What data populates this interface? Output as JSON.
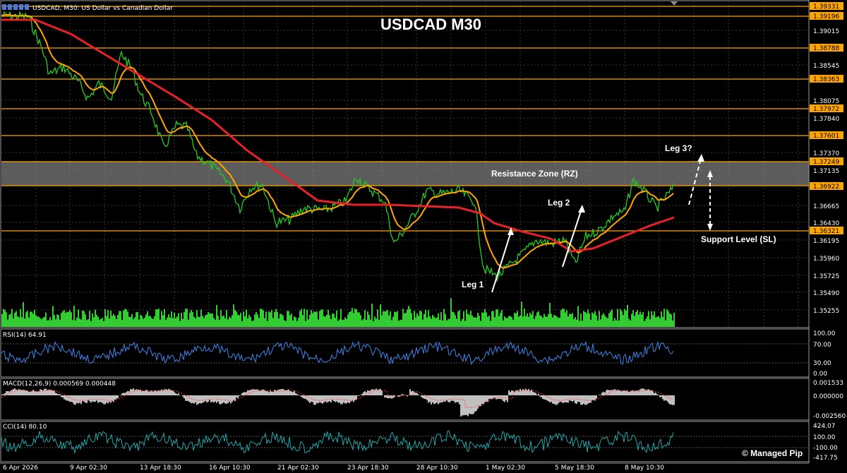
{
  "header": {
    "symbol_info": "USDCAD, M30:  US Dollar vs Canadian Dollar",
    "title": "USDCAD M30"
  },
  "price_axis": {
    "plain_ticks": [
      "1.39015",
      "1.38545",
      "1.38075",
      "1.37840",
      "1.37370",
      "1.37135",
      "1.36665",
      "1.36430",
      "1.36195",
      "1.35960",
      "1.35725",
      "1.35490",
      "1.35255"
    ],
    "level_boxes": [
      "1.39331",
      "1.39196",
      "1.38788",
      "1.38363",
      "1.37972",
      "1.37601",
      "1.37249",
      "1.36922",
      "1.36321"
    ],
    "level_color": "#FFA500"
  },
  "annotations": {
    "resistance_zone": "Resistance Zone (RZ)",
    "support_level": "Support Level (SL)",
    "leg1": "Leg 1",
    "leg2": "Leg 2",
    "leg3": "Leg 3?"
  },
  "rsi": {
    "label": "RSI(14) 64.91",
    "ticks": [
      "100.00",
      "70.00",
      "30.00",
      "0.00"
    ]
  },
  "macd": {
    "label": "MACD(12,26,9) 0.000569 0.000448",
    "ticks": [
      "0.001533",
      "0.000000",
      "-0.002560"
    ]
  },
  "cci": {
    "label": "CCI(14) 80.10",
    "ticks": [
      "424.07",
      "100.00",
      "-100.00",
      "-417.75"
    ]
  },
  "time_axis": [
    "6 Apr 2026",
    "9 Apr 02:30",
    "13 Apr 18:30",
    "16 Apr 10:30",
    "21 Apr 02:30",
    "23 Apr 18:30",
    "28 Apr 10:30",
    "1 May 02:30",
    "5 May 18:30",
    "8 May 10:30"
  ],
  "watermark": "© Managed Pip",
  "colors": {
    "price": "#22CC22",
    "ma_fast": "#FFA500",
    "ma_slow": "#E8202A",
    "volume": "#33CC33",
    "rsi": "#3B7BD8",
    "macd_hist": "#C0C0C0",
    "macd_signal": "#FF3B3B",
    "cci": "#1FA7A7",
    "zone": "#808080"
  }
}
